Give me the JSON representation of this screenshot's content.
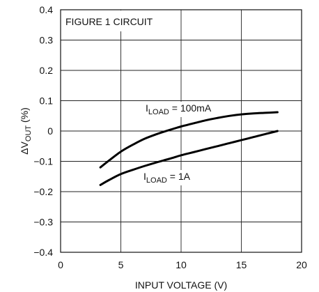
{
  "chart_data": {
    "type": "line",
    "x_ticks": [
      "0",
      "5",
      "10",
      "15",
      "20"
    ],
    "y_ticks": [
      "0.4",
      "0.3",
      "0.2",
      "0.1",
      "0",
      "−0.1",
      "−0.2",
      "−0.3",
      "−0.4"
    ],
    "xlim": [
      0,
      20
    ],
    "ylim": [
      -0.4,
      0.4
    ],
    "grid": true,
    "xlabel": "INPUT VOLTAGE (V)",
    "ylabel_prefix": "ΔV",
    "ylabel_sub": "OUT",
    "ylabel_suffix": " (%)",
    "annotation": "FIGURE 1 CIRCUIT",
    "series": [
      {
        "label_prefix": "I",
        "label_sub": "LOAD",
        "label_suffix": " = 100mA",
        "x": [
          3.3,
          4,
          5,
          6,
          7,
          8,
          9,
          10,
          11,
          12,
          13,
          14,
          15,
          16,
          17,
          18
        ],
        "y": [
          -0.12,
          -0.098,
          -0.068,
          -0.045,
          -0.025,
          -0.01,
          0.003,
          0.015,
          0.025,
          0.035,
          0.043,
          0.05,
          0.055,
          0.058,
          0.06,
          0.062
        ]
      },
      {
        "label_prefix": "I",
        "label_sub": "LOAD",
        "label_suffix": " = 1A",
        "x": [
          3.3,
          4,
          5,
          6,
          7,
          8,
          9,
          10,
          11,
          12,
          13,
          14,
          15,
          16,
          17,
          18
        ],
        "y": [
          -0.178,
          -0.162,
          -0.142,
          -0.128,
          -0.115,
          -0.103,
          -0.092,
          -0.08,
          -0.07,
          -0.06,
          -0.05,
          -0.04,
          -0.03,
          -0.02,
          -0.01,
          0.0
        ]
      }
    ]
  }
}
